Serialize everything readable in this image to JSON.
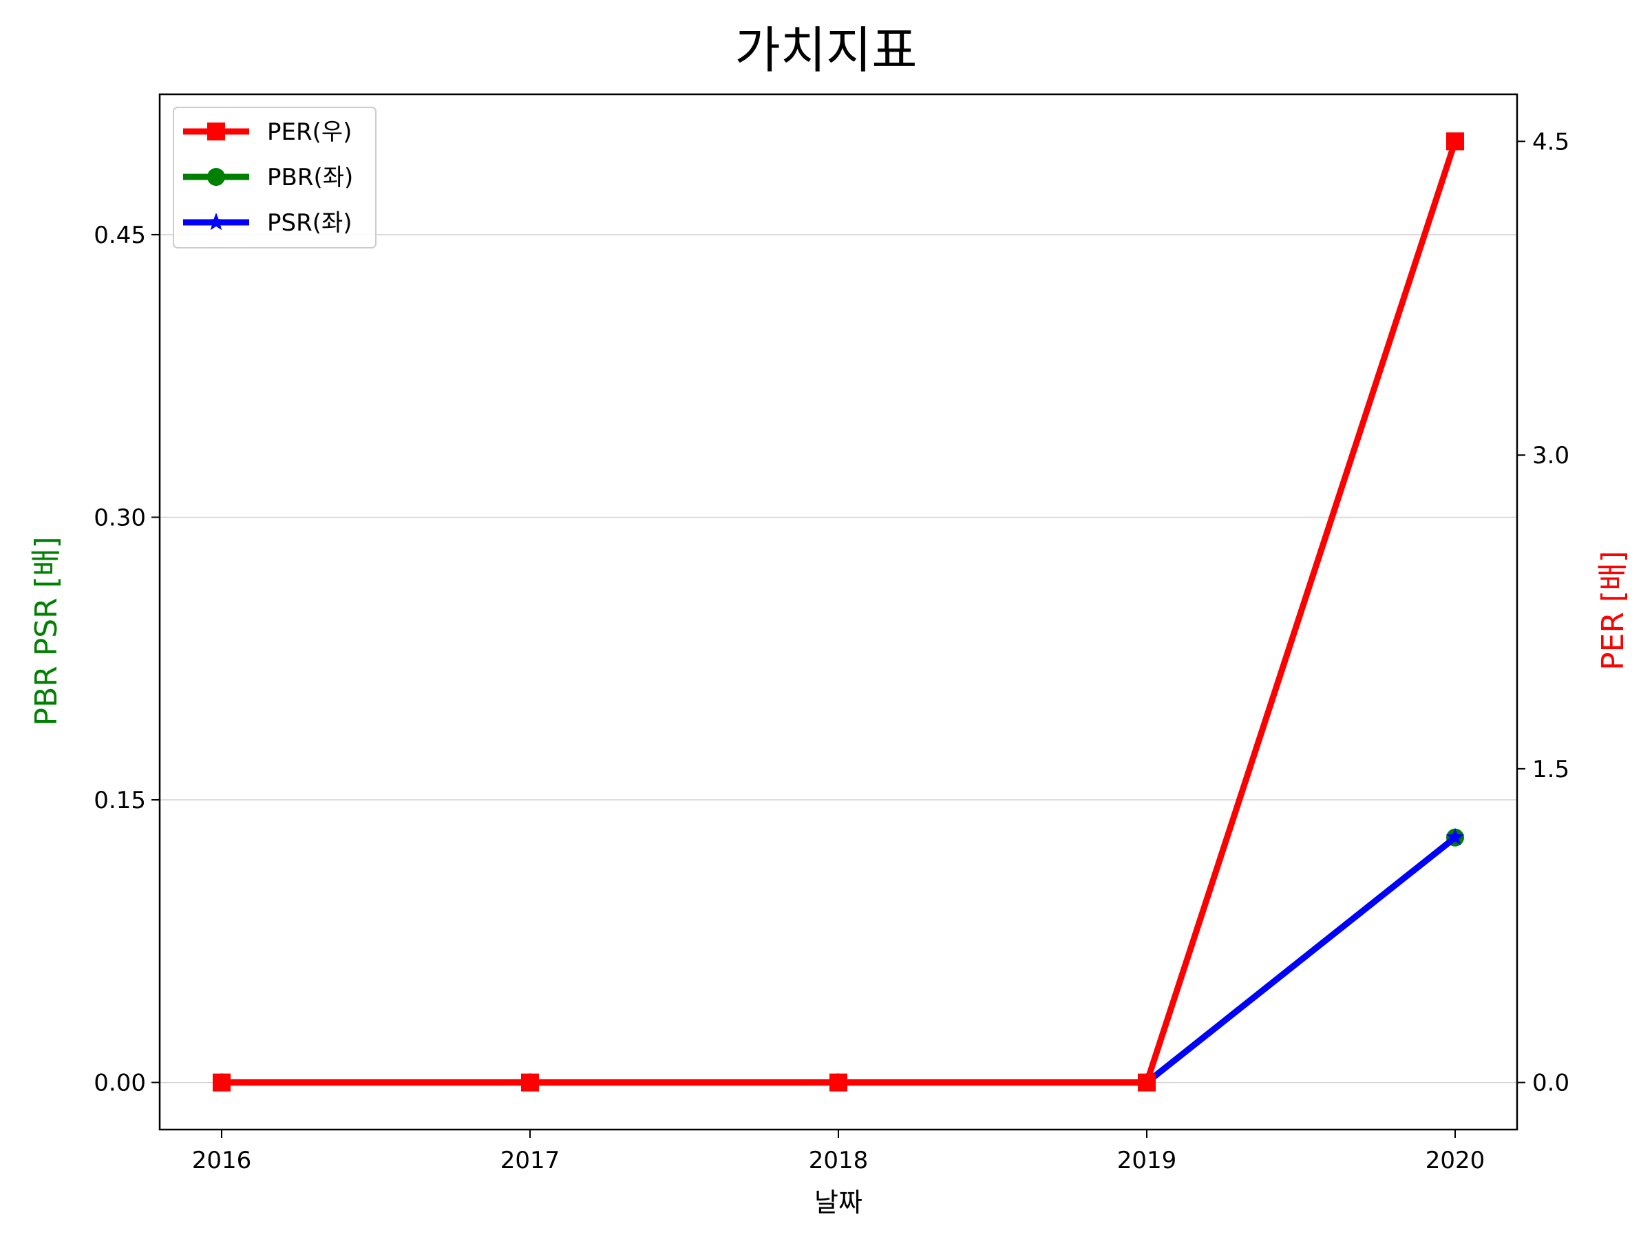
{
  "chart_data": {
    "type": "line",
    "title": "가치지표",
    "xlabel": "날짜",
    "ylabel_left": "PBR PSR [배]",
    "ylabel_right": "PER [배]",
    "categories": [
      "2016",
      "2017",
      "2018",
      "2019",
      "2020"
    ],
    "left_axis": {
      "ylim": [
        -0.025,
        0.5245
      ],
      "ticks": [
        0.0,
        0.15,
        0.3,
        0.45
      ],
      "tick_labels": [
        "0.00",
        "0.15",
        "0.30",
        "0.45"
      ],
      "grid": true
    },
    "right_axis": {
      "ylim": [
        -0.225,
        4.725
      ],
      "ticks": [
        0.0,
        1.5,
        3.0,
        4.5
      ],
      "tick_labels": [
        "0.0",
        "1.5",
        "3.0",
        "4.5"
      ]
    },
    "series": [
      {
        "name": "PER(우)",
        "axis": "right",
        "color": "#ff0000",
        "marker": "square",
        "values": [
          0,
          0,
          0,
          0,
          4.5
        ]
      },
      {
        "name": "PBR(좌)",
        "axis": "left",
        "color": "#008000",
        "marker": "circle",
        "values": [
          0,
          0,
          0,
          0,
          0.13
        ]
      },
      {
        "name": "PSR(좌)",
        "axis": "left",
        "color": "#0000ff",
        "marker": "star",
        "values": [
          0,
          0,
          0,
          0,
          0.13
        ]
      }
    ],
    "legend_position": "top-left",
    "colors": {
      "left_label": "#008000",
      "right_label": "#ff0000",
      "grid": "#d3d3d3"
    }
  }
}
